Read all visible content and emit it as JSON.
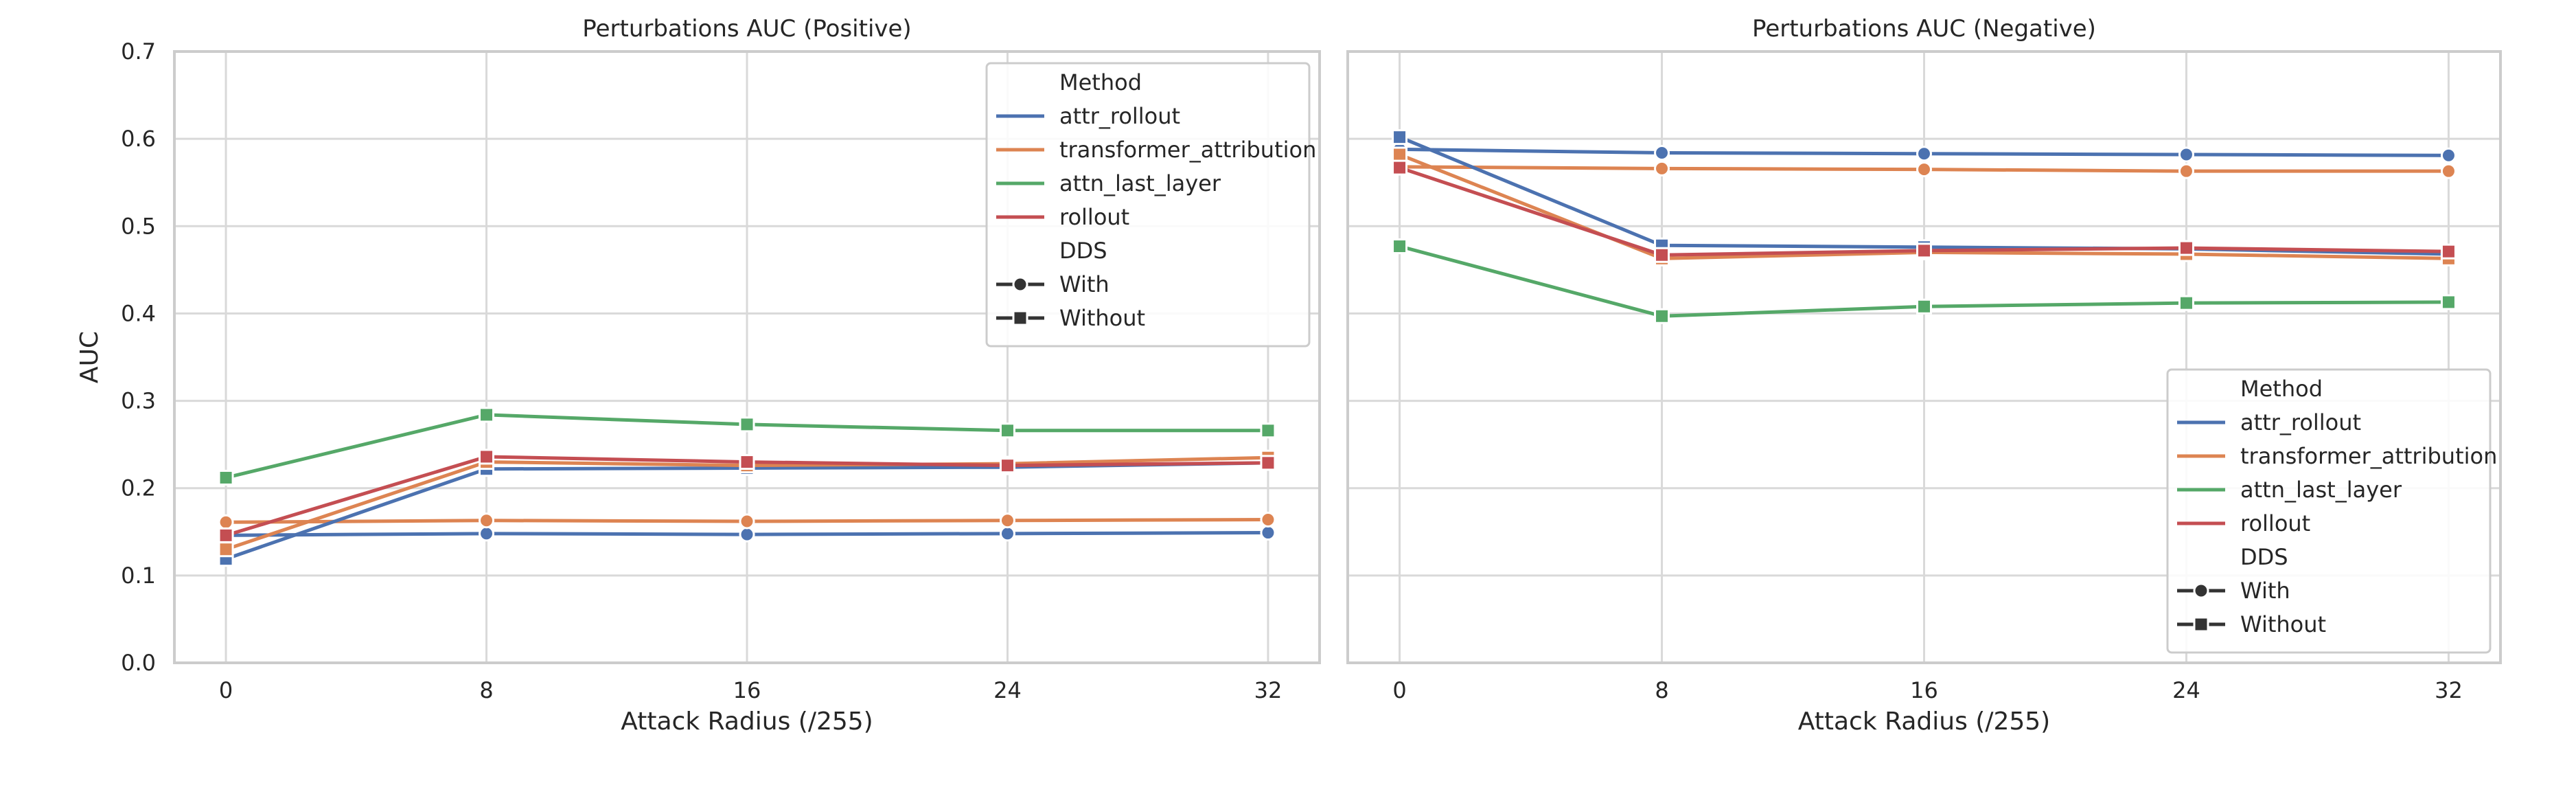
{
  "colors": {
    "attr_rollout": "#4c72b0",
    "transformer_attribution": "#dd8452",
    "attn_last_layer": "#55a868",
    "rollout": "#c44e52",
    "grid": "#d9d9d9",
    "frame": "#cccccc",
    "text": "#262626"
  },
  "chart_data": [
    {
      "type": "line",
      "title": "Perturbations AUC (Positive)",
      "xlabel": "Attack Radius (/255)",
      "ylabel": "AUC",
      "x": [
        0,
        8,
        16,
        24,
        32
      ],
      "xticks": [
        "0",
        "8",
        "16",
        "24",
        "32"
      ],
      "ylim": [
        0.0,
        0.7
      ],
      "yticks": [
        "0.0",
        "0.1",
        "0.2",
        "0.3",
        "0.4",
        "0.5",
        "0.6",
        "0.7"
      ],
      "grid": true,
      "legend": {
        "position": "top-right",
        "hue_title": "Method",
        "hue_entries": [
          "attr_rollout",
          "transformer_attribution",
          "attn_last_layer",
          "rollout"
        ],
        "style_title": "DDS",
        "style_entries": [
          {
            "label": "With",
            "marker": "circle"
          },
          {
            "label": "Without",
            "marker": "square"
          }
        ]
      },
      "series": [
        {
          "method": "attr_rollout",
          "dds": "With",
          "marker": "circle",
          "values": [
            0.146,
            0.148,
            0.147,
            0.148,
            0.149
          ]
        },
        {
          "method": "transformer_attribution",
          "dds": "With",
          "marker": "circle",
          "values": [
            0.161,
            0.163,
            0.162,
            0.163,
            0.164
          ]
        },
        {
          "method": "attr_rollout",
          "dds": "Without",
          "marker": "square",
          "values": [
            0.119,
            0.222,
            0.223,
            0.224,
            0.229
          ]
        },
        {
          "method": "transformer_attribution",
          "dds": "Without",
          "marker": "square",
          "values": [
            0.13,
            0.23,
            0.226,
            0.228,
            0.235
          ]
        },
        {
          "method": "rollout",
          "dds": "Without",
          "marker": "square",
          "values": [
            0.146,
            0.236,
            0.23,
            0.226,
            0.229
          ]
        },
        {
          "method": "attn_last_layer",
          "dds": "Without",
          "marker": "square",
          "values": [
            0.212,
            0.284,
            0.273,
            0.266,
            0.266
          ]
        }
      ]
    },
    {
      "type": "line",
      "title": "Perturbations AUC (Negative)",
      "xlabel": "Attack Radius (/255)",
      "ylabel": "",
      "x": [
        0,
        8,
        16,
        24,
        32
      ],
      "xticks": [
        "0",
        "8",
        "16",
        "24",
        "32"
      ],
      "ylim": [
        0.0,
        0.7
      ],
      "yticks": [],
      "grid": true,
      "legend": {
        "position": "bottom-right",
        "hue_title": "Method",
        "hue_entries": [
          "attr_rollout",
          "transformer_attribution",
          "attn_last_layer",
          "rollout"
        ],
        "style_title": "DDS",
        "style_entries": [
          {
            "label": "With",
            "marker": "circle"
          },
          {
            "label": "Without",
            "marker": "square"
          }
        ]
      },
      "series": [
        {
          "method": "attr_rollout",
          "dds": "With",
          "marker": "circle",
          "values": [
            0.588,
            0.584,
            0.583,
            0.582,
            0.581
          ]
        },
        {
          "method": "transformer_attribution",
          "dds": "With",
          "marker": "circle",
          "values": [
            0.568,
            0.566,
            0.565,
            0.563,
            0.563
          ]
        },
        {
          "method": "attr_rollout",
          "dds": "Without",
          "marker": "square",
          "values": [
            0.602,
            0.478,
            0.476,
            0.474,
            0.468
          ]
        },
        {
          "method": "transformer_attribution",
          "dds": "Without",
          "marker": "square",
          "values": [
            0.582,
            0.463,
            0.47,
            0.468,
            0.463
          ]
        },
        {
          "method": "rollout",
          "dds": "Without",
          "marker": "square",
          "values": [
            0.567,
            0.467,
            0.472,
            0.475,
            0.471
          ]
        },
        {
          "method": "attn_last_layer",
          "dds": "Without",
          "marker": "square",
          "values": [
            0.477,
            0.397,
            0.408,
            0.412,
            0.413
          ]
        }
      ]
    }
  ]
}
